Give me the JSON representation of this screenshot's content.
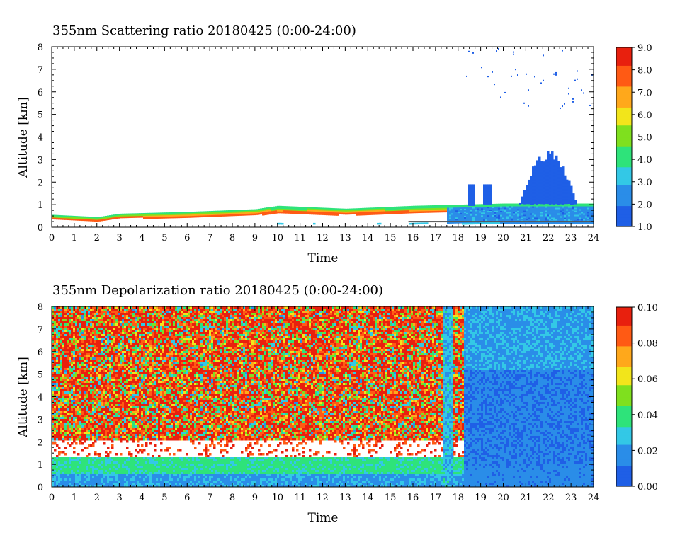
{
  "chart_data": [
    {
      "type": "heatmap",
      "title": "355nm Scattering ratio  20180425 (0:00-24:00)",
      "xlabel": "Time",
      "ylabel": "Altitude [km]",
      "xlim": [
        0,
        24
      ],
      "ylim": [
        0,
        8
      ],
      "xticks": [
        "0",
        "1",
        "2",
        "3",
        "4",
        "5",
        "6",
        "7",
        "8",
        "9",
        "10",
        "11",
        "12",
        "13",
        "14",
        "15",
        "16",
        "17",
        "18",
        "19",
        "20",
        "21",
        "22",
        "23",
        "24"
      ],
      "yticks": [
        "0",
        "1",
        "2",
        "3",
        "4",
        "5",
        "6",
        "7",
        "8"
      ],
      "colorbar": {
        "range": [
          1.0,
          9.0
        ],
        "ticks": [
          "1.0",
          "2.0",
          "3.0",
          "4.0",
          "5.0",
          "6.0",
          "7.0",
          "8.0",
          "9.0"
        ]
      },
      "features": {
        "boundary_layer_top_km": [
          {
            "t": 0,
            "z": 0.55
          },
          {
            "t": 2,
            "z": 0.45
          },
          {
            "t": 3,
            "z": 0.6
          },
          {
            "t": 6,
            "z": 0.68
          },
          {
            "t": 9,
            "z": 0.8
          },
          {
            "t": 10,
            "z": 0.95
          },
          {
            "t": 13,
            "z": 0.82
          },
          {
            "t": 16,
            "z": 0.95
          },
          {
            "t": 18,
            "z": 1.0
          },
          {
            "t": 20,
            "z": 1.05
          },
          {
            "t": 24,
            "z": 1.05
          }
        ],
        "aerosol_plume": {
          "t_start": 20.7,
          "t_end": 23.2,
          "z_top_km": 3.4
        },
        "high_cloud": {
          "t_start": 18.3,
          "t_end": 24,
          "z_base_km": 5.3,
          "z_top_km": 8.0
        }
      }
    },
    {
      "type": "heatmap",
      "title": "355nm Depolarization ratio  20180425 (0:00-24:00)",
      "xlabel": "Time",
      "ylabel": "Altitude [km]",
      "xlim": [
        0,
        24
      ],
      "ylim": [
        0,
        8
      ],
      "xticks": [
        "0",
        "1",
        "2",
        "3",
        "4",
        "5",
        "6",
        "7",
        "8",
        "9",
        "10",
        "11",
        "12",
        "13",
        "14",
        "15",
        "16",
        "17",
        "18",
        "19",
        "20",
        "21",
        "22",
        "23",
        "24"
      ],
      "yticks": [
        "0",
        "1",
        "2",
        "3",
        "4",
        "5",
        "6",
        "7",
        "8"
      ],
      "colorbar": {
        "range": [
          0.0,
          0.1
        ],
        "ticks": [
          "0.00",
          "0.02",
          "0.04",
          "0.06",
          "0.08",
          "0.10"
        ]
      },
      "features": {
        "noisy_daytime_until_hour": 18.2,
        "white_band_km": [
          1.4,
          2.1
        ],
        "green_layer_km": [
          0.6,
          1.35
        ],
        "night_background_value": 0.015
      }
    }
  ],
  "colormap": [
    "#1f5fe6",
    "#2a8de8",
    "#33c8e6",
    "#2ee37a",
    "#7fe01e",
    "#f2e51b",
    "#ffa81b",
    "#ff5a14",
    "#e8200e"
  ]
}
